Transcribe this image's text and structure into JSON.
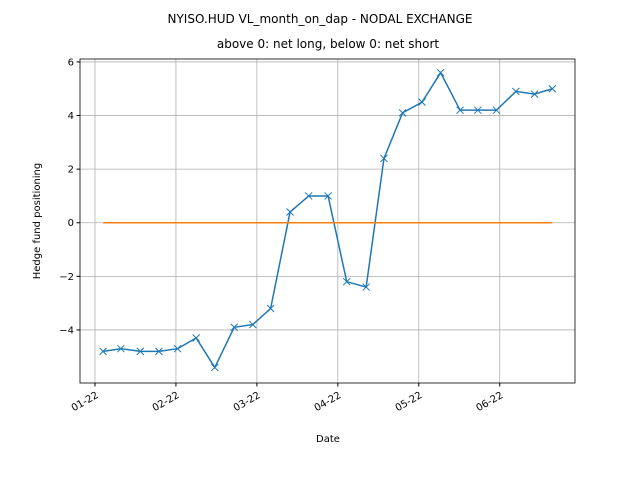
{
  "chart_data": {
    "type": "line",
    "title": "NYISO.HUD VL_month_on_dap - NODAL EXCHANGE",
    "subtitle": "above 0: net long, below 0: net short",
    "x_label": "Date",
    "y_label": "Hedge fund positioning",
    "x": [
      1.1,
      1.32,
      1.56,
      1.79,
      2.02,
      2.25,
      2.48,
      2.72,
      2.95,
      3.17,
      3.41,
      3.64,
      3.88,
      4.11,
      4.35,
      4.57,
      4.8,
      5.04,
      5.27,
      5.51,
      5.73,
      5.96,
      6.2,
      6.43,
      6.65
    ],
    "series": [
      {
        "color": "#1f77b4",
        "marker": "x",
        "values": [
          -4.8,
          -4.7,
          -4.8,
          -4.8,
          -4.7,
          -4.3,
          -5.4,
          -3.9,
          -3.8,
          -3.2,
          0.4,
          1.0,
          1.0,
          -2.2,
          -2.4,
          2.4,
          4.1,
          4.5,
          5.6,
          4.2,
          4.2,
          4.2,
          4.9,
          4.8,
          5.0
        ]
      },
      {
        "color": "#ff7f0e",
        "values": [
          0,
          0,
          0,
          0,
          0,
          0,
          0,
          0,
          0,
          0,
          0,
          0,
          0,
          0,
          0,
          0,
          0,
          0,
          0,
          0,
          0,
          0,
          0,
          0,
          0
        ]
      }
    ],
    "xlim": [
      0.815,
      6.93
    ],
    "xticks": [
      {
        "value": 1,
        "label": "01-22"
      },
      {
        "value": 2,
        "label": "02-22"
      },
      {
        "value": 3,
        "label": "03-22"
      },
      {
        "value": 4,
        "label": "04-22"
      },
      {
        "value": 5,
        "label": "05-22"
      },
      {
        "value": 6,
        "label": "06-22"
      }
    ],
    "ylim": [
      -5.98,
      6.11
    ],
    "yticks": [
      {
        "value": -4,
        "label": "−4"
      },
      {
        "value": -2,
        "label": "−2"
      },
      0,
      2,
      4,
      6
    ],
    "grid": true
  }
}
